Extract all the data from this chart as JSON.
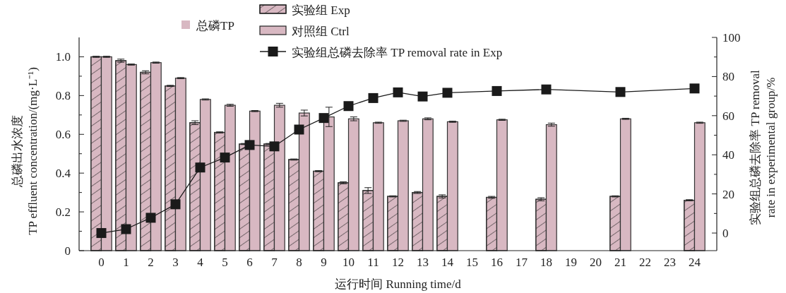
{
  "chart_data": {
    "type": "bar",
    "xlabel": "运行时间 Running time/d",
    "ylabel": "总磷出水浓度\nTP effluent concentration/(mg·L⁻¹)",
    "y2label": "实验组总磷去除率 TP removal\nrate in experimental group/%",
    "legend_title": "总磷TP",
    "legend": "top",
    "marker": "square",
    "line_style": "solid",
    "grid": false,
    "x": [
      0,
      1,
      2,
      3,
      4,
      5,
      6,
      7,
      8,
      9,
      10,
      11,
      12,
      13,
      14,
      16,
      18,
      21,
      24
    ],
    "xlim": [
      -0.9,
      24.9
    ],
    "xticks": [
      0,
      1,
      2,
      3,
      4,
      5,
      6,
      7,
      8,
      9,
      10,
      11,
      12,
      13,
      14,
      15,
      16,
      17,
      18,
      19,
      20,
      21,
      22,
      23,
      24
    ],
    "ylim": [
      0,
      1.1
    ],
    "yticks": [
      0,
      {
        "value": 0.1,
        "label": null
      },
      0.2,
      {
        "value": 0.3,
        "label": null
      },
      0.4,
      {
        "value": 0.5,
        "label": null
      },
      0.6,
      {
        "value": 0.7,
        "label": null
      },
      0.8,
      {
        "value": 0.9,
        "label": null
      },
      {
        "value": 1,
        "label": "1.0"
      }
    ],
    "y2lim": [
      -9,
      100
    ],
    "y2ticks": [
      0,
      {
        "value": 10,
        "label": null
      },
      20,
      {
        "value": 30,
        "label": null
      },
      40,
      {
        "value": 50,
        "label": null
      },
      60,
      {
        "value": 70,
        "label": null
      },
      80,
      {
        "value": 90,
        "label": null
      },
      100
    ],
    "series": [
      {
        "name": "实验组 Exp",
        "color": "#d8b8c2",
        "values": [
          1.0,
          0.98,
          0.92,
          0.85,
          0.66,
          0.61,
          0.55,
          0.55,
          0.47,
          0.41,
          0.35,
          0.31,
          0.28,
          0.3,
          0.28,
          0.275,
          0.265,
          0.28,
          0.26
        ],
        "errors": [
          0.003,
          0.008,
          0.008,
          0.003,
          0.01,
          0.003,
          0.003,
          0.003,
          0.003,
          0.003,
          0.005,
          0.015,
          0.003,
          0.005,
          0.008,
          0.005,
          0.008,
          0.003,
          0.003
        ]
      },
      {
        "name": "对照组 Ctrl",
        "color": "#d8b8c2",
        "values": [
          1.0,
          0.96,
          0.97,
          0.89,
          0.78,
          0.75,
          0.72,
          0.75,
          0.71,
          0.69,
          0.68,
          0.66,
          0.67,
          0.68,
          0.665,
          0.675,
          0.65,
          0.68,
          0.66
        ],
        "errors": [
          0.003,
          0.003,
          0.003,
          0.003,
          0.003,
          0.005,
          0.003,
          0.01,
          0.015,
          0.05,
          0.01,
          0.003,
          0.003,
          0.005,
          0.003,
          0.003,
          0.008,
          0.003,
          0.003
        ]
      },
      {
        "name": "实验组总磷去除率 TP removal rate in Exp",
        "type": "line",
        "axis": "y2",
        "color": "#1a1a1a",
        "values": [
          0,
          2,
          7.8,
          14.7,
          33.5,
          38.6,
          45,
          44.3,
          52.9,
          58.8,
          64.9,
          69,
          71.9,
          69.8,
          71.7,
          72.6,
          73.4,
          72.1,
          73.9
        ]
      }
    ]
  }
}
